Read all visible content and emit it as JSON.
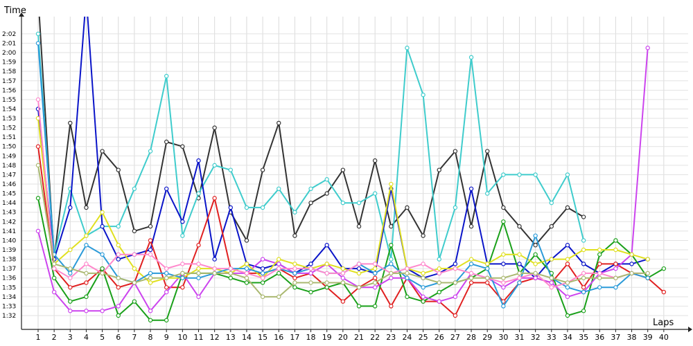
{
  "chart_data": {
    "type": "line",
    "title": "",
    "xlabel": "Laps",
    "ylabel": "Time",
    "x": [
      1,
      2,
      3,
      4,
      5,
      6,
      7,
      8,
      9,
      10,
      11,
      12,
      13,
      14,
      15,
      16,
      17,
      18,
      19,
      20,
      21,
      22,
      23,
      24,
      25,
      26,
      27,
      28,
      29,
      30,
      31,
      32,
      33,
      34,
      35,
      36,
      37,
      38,
      39,
      40
    ],
    "y_ticks": [
      "1:32",
      "1:33",
      "1:34",
      "1:35",
      "1:36",
      "1:37",
      "1:38",
      "1:39",
      "1:40",
      "1:41",
      "1:42",
      "1:43",
      "1:44",
      "1:45",
      "1:46",
      "1:47",
      "1:48",
      "1:49",
      "1:50",
      "1:51",
      "1:52",
      "1:53",
      "1:54",
      "1:55",
      "1:56",
      "1:57",
      "1:58",
      "1:59",
      "2:00",
      "2:01",
      "2:02"
    ],
    "ylim_seconds": [
      91,
      124
    ],
    "grid": true,
    "legend": "none",
    "series": [
      {
        "color": "#333333",
        "values": [
          126,
          98,
          112.5,
          103.5,
          109.5,
          107.5,
          101,
          101.5,
          110.5,
          110,
          104.5,
          112,
          103,
          100,
          107.5,
          112.5,
          100.5,
          104,
          105,
          107.5,
          101.5,
          108.5,
          101.5,
          103.5,
          100.5,
          107.5,
          109.5,
          101.5,
          109.5,
          103.5,
          101.5,
          99.5,
          101.5,
          103.5,
          102.5,
          null,
          null,
          null,
          null,
          null
        ]
      },
      {
        "color": "#3fcccc",
        "values": [
          122,
          98.5,
          105.5,
          100.5,
          101.5,
          101.5,
          105.5,
          109.5,
          117.5,
          100.5,
          105,
          108,
          107.5,
          103.5,
          103.5,
          105.5,
          103,
          105.5,
          106.5,
          104,
          104,
          105,
          98,
          120.5,
          115.5,
          98,
          103.5,
          119.5,
          105,
          107,
          107,
          107,
          104,
          107,
          100,
          null,
          null,
          null,
          null,
          null
        ]
      },
      {
        "color": "#0a14c8",
        "values": [
          114,
          98,
          103.5,
          126,
          101.5,
          98,
          98.5,
          99,
          105.5,
          102,
          108.5,
          98,
          103.5,
          97.5,
          97,
          97.5,
          96.5,
          97.5,
          99.5,
          97,
          97,
          96.5,
          105.5,
          97,
          96,
          96.5,
          97.5,
          105.5,
          97.5,
          97.5,
          97.5,
          96,
          98,
          99.5,
          97.5,
          96.5,
          97.5,
          97.5,
          98,
          null
        ]
      },
      {
        "color": "#e02020",
        "values": [
          110,
          97,
          95,
          95.5,
          97,
          95,
          95.5,
          100,
          95,
          95,
          99.5,
          104.5,
          97,
          96.5,
          96.5,
          97,
          96,
          96.5,
          95,
          93.5,
          95,
          96,
          93,
          96,
          93.5,
          93.5,
          92,
          95.5,
          95.5,
          93.5,
          95.5,
          96,
          95.5,
          97.5,
          95,
          97.5,
          97.5,
          96.5,
          96,
          94.5
        ]
      },
      {
        "color": "#1aa01a",
        "values": [
          104.5,
          96,
          93.5,
          94,
          97,
          92,
          93.5,
          91.5,
          91.5,
          96.5,
          96.5,
          96.5,
          96,
          95.5,
          95.5,
          96.5,
          95,
          94.5,
          95,
          95.5,
          93,
          93,
          99.5,
          94,
          93.5,
          94.5,
          95.5,
          96,
          97,
          102,
          96.5,
          98.5,
          96.5,
          92,
          92.5,
          98.5,
          100,
          98.5,
          96,
          97
        ]
      },
      {
        "color": "#cc44ee",
        "values": [
          101,
          94.5,
          92.5,
          92.5,
          92.5,
          93,
          95.5,
          92.5,
          94.5,
          96.5,
          94,
          96.5,
          96.5,
          96.5,
          98,
          97.5,
          96.5,
          96.5,
          97.5,
          96,
          95,
          95,
          96,
          96,
          94,
          93.5,
          94,
          96.5,
          96,
          95,
          96,
          96,
          95.5,
          94,
          94.5,
          96.5,
          97,
          98.5,
          120.5,
          null
        ]
      },
      {
        "color": "#e0e020",
        "values": [
          113,
          97.5,
          99,
          100.5,
          103,
          99.5,
          97,
          95.5,
          96,
          96,
          97,
          97,
          96.5,
          97.5,
          96,
          98,
          97.5,
          97,
          97.5,
          97,
          96.5,
          97,
          106,
          97,
          96.5,
          97,
          97,
          98,
          97.5,
          98.5,
          98.5,
          97.5,
          98,
          98,
          99,
          99,
          99,
          98.5,
          98,
          null
        ]
      },
      {
        "color": "#2a9ad8",
        "values": [
          121,
          98.5,
          96.5,
          99.5,
          98.5,
          96,
          95.5,
          96.5,
          96.5,
          96,
          96,
          96.5,
          97,
          97,
          96.5,
          97,
          96.5,
          97,
          96.5,
          96.5,
          97.5,
          96.5,
          97.5,
          96,
          95,
          95.5,
          95.5,
          97.5,
          97,
          93,
          95.5,
          100.5,
          96,
          95,
          94.5,
          95,
          95,
          96.5,
          96,
          null
        ]
      },
      {
        "color": "#ff88cc",
        "values": [
          115,
          97,
          96,
          97.5,
          96.5,
          98.5,
          98.5,
          98.5,
          97,
          97.5,
          97.5,
          97,
          97,
          96.5,
          96,
          97,
          97,
          97,
          96.5,
          96.5,
          97.5,
          97.5,
          96.5,
          97,
          97.5,
          96.5,
          97,
          96.5,
          96,
          95.5,
          96,
          96.5,
          95,
          95.5,
          96.5,
          96.5,
          96,
          96.5,
          96.5,
          null
        ]
      },
      {
        "color": "#aab870",
        "values": [
          108,
          97.5,
          97,
          96.5,
          96.5,
          96,
          95.5,
          96,
          96,
          96.5,
          96.5,
          96.5,
          96.5,
          96,
          94,
          94,
          95.5,
          95.5,
          95.5,
          95.5,
          95,
          95.5,
          96.5,
          96.5,
          96,
          95.5,
          95.5,
          96,
          96,
          96,
          96.5,
          96.5,
          96,
          95.5,
          96,
          96,
          96,
          96.5,
          96.5,
          null
        ]
      }
    ]
  }
}
